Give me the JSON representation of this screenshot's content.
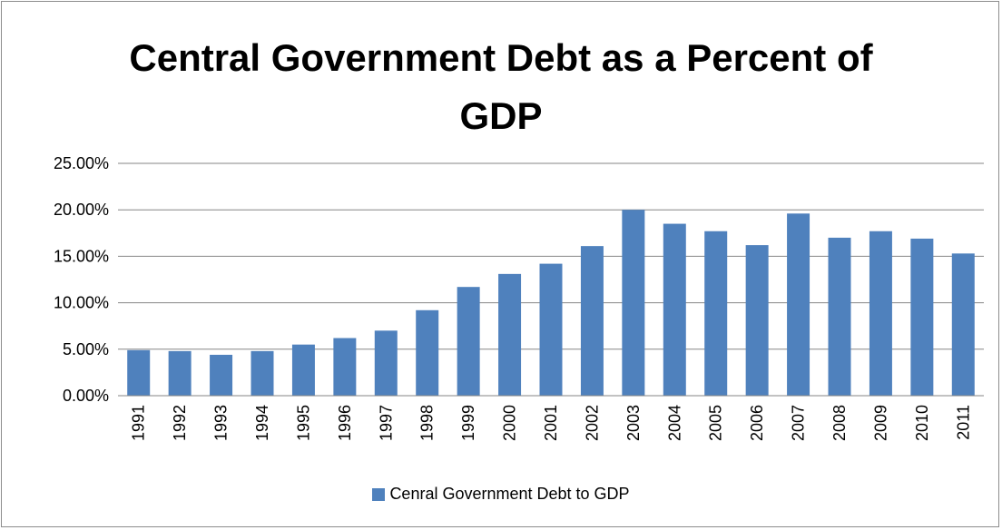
{
  "title_line1": "Central Government Debt as a Percent of",
  "title_line2": "GDP",
  "legend": {
    "label": "Cenral Government Debt to GDP",
    "color": "#4f81bd"
  },
  "chart_data": {
    "type": "bar",
    "title": "Central Government Debt as a Percent of GDP",
    "xlabel": "",
    "ylabel": "",
    "ylim": [
      0,
      25
    ],
    "yticks": [
      "0.00%",
      "5.00%",
      "10.00%",
      "15.00%",
      "20.00%",
      "25.00%"
    ],
    "grid": true,
    "legend_position": "bottom",
    "categories": [
      "1991",
      "1992",
      "1993",
      "1994",
      "1995",
      "1996",
      "1997",
      "1998",
      "1999",
      "2000",
      "2001",
      "2002",
      "2003",
      "2004",
      "2005",
      "2006",
      "2007",
      "2008",
      "2009",
      "2010",
      "2011"
    ],
    "series": [
      {
        "name": "Cenral Government Debt to GDP",
        "color": "#4f81bd",
        "values": [
          4.9,
          4.8,
          4.4,
          4.8,
          5.5,
          6.2,
          7.0,
          9.2,
          11.7,
          13.1,
          14.2,
          16.1,
          20.0,
          18.5,
          17.7,
          16.2,
          19.6,
          17.0,
          17.7,
          16.9,
          15.3
        ]
      }
    ]
  }
}
